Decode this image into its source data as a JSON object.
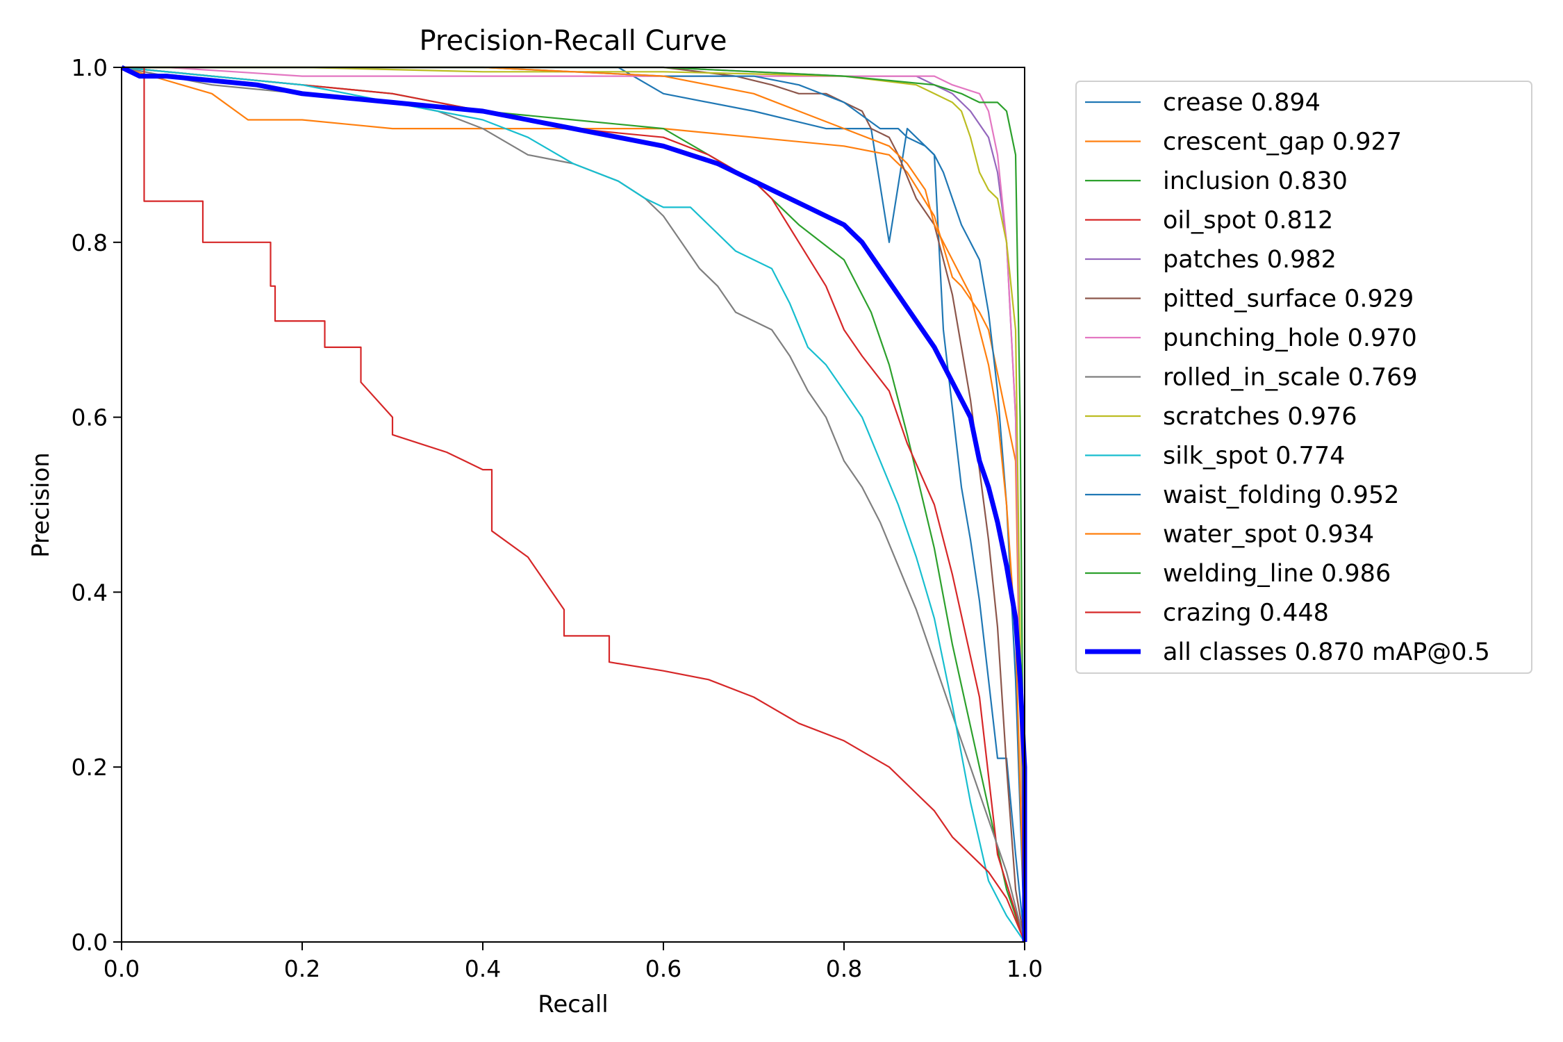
{
  "chart_data": {
    "type": "line",
    "title": "Precision-Recall Curve",
    "xlabel": "Recall",
    "ylabel": "Precision",
    "xlim": [
      0,
      1
    ],
    "ylim": [
      0,
      1
    ],
    "xticks": [
      "0.0",
      "0.2",
      "0.4",
      "0.6",
      "0.8",
      "1.0"
    ],
    "yticks": [
      "0.0",
      "0.2",
      "0.4",
      "0.6",
      "0.8",
      "1.0"
    ],
    "grid": false,
    "legend_position": "outside-right",
    "series": [
      {
        "name": "crease 0.894",
        "color": "#1f77b4",
        "width": 1,
        "x": [
          0,
          0.05,
          0.2,
          0.3,
          0.4,
          0.5,
          0.55,
          0.6,
          0.7,
          0.78,
          0.82,
          0.83,
          0.85,
          0.87,
          0.9,
          0.91,
          0.93,
          0.94,
          0.95,
          0.97,
          0.98,
          0.99,
          1.0
        ],
        "y": [
          1.0,
          1.0,
          1.0,
          1.0,
          1.0,
          1.0,
          1.0,
          0.97,
          0.95,
          0.93,
          0.93,
          0.93,
          0.8,
          0.93,
          0.9,
          0.7,
          0.52,
          0.46,
          0.39,
          0.21,
          0.21,
          0.1,
          0.0
        ]
      },
      {
        "name": "crescent_gap 0.927",
        "color": "#ff7f0e",
        "width": 1,
        "x": [
          0,
          0.1,
          0.14,
          0.2,
          0.3,
          0.45,
          0.6,
          0.7,
          0.8,
          0.85,
          0.87,
          0.9,
          0.92,
          0.93,
          0.95,
          0.96,
          0.98,
          0.99,
          1.0
        ],
        "y": [
          1.0,
          0.97,
          0.94,
          0.94,
          0.93,
          0.93,
          0.93,
          0.92,
          0.91,
          0.9,
          0.88,
          0.83,
          0.76,
          0.75,
          0.72,
          0.7,
          0.6,
          0.55,
          0.0
        ]
      },
      {
        "name": "inclusion 0.830",
        "color": "#2ca02c",
        "width": 1,
        "x": [
          0,
          0.1,
          0.2,
          0.3,
          0.4,
          0.5,
          0.6,
          0.65,
          0.7,
          0.72,
          0.75,
          0.8,
          0.83,
          0.85,
          0.87,
          0.9,
          0.92,
          0.95,
          0.98,
          1.0
        ],
        "y": [
          1.0,
          0.99,
          0.98,
          0.97,
          0.95,
          0.94,
          0.93,
          0.9,
          0.87,
          0.85,
          0.82,
          0.78,
          0.72,
          0.66,
          0.58,
          0.45,
          0.34,
          0.2,
          0.06,
          0.0
        ]
      },
      {
        "name": "oil_spot 0.812",
        "color": "#d62728",
        "width": 1,
        "x": [
          0,
          0.1,
          0.2,
          0.3,
          0.4,
          0.5,
          0.6,
          0.65,
          0.7,
          0.72,
          0.75,
          0.78,
          0.8,
          0.82,
          0.85,
          0.87,
          0.9,
          0.92,
          0.95,
          0.97,
          1.0
        ],
        "y": [
          1.0,
          0.99,
          0.98,
          0.97,
          0.95,
          0.93,
          0.92,
          0.9,
          0.87,
          0.85,
          0.8,
          0.75,
          0.7,
          0.67,
          0.63,
          0.57,
          0.5,
          0.42,
          0.28,
          0.1,
          0.0
        ]
      },
      {
        "name": "patches 0.982",
        "color": "#9467bd",
        "width": 1,
        "x": [
          0,
          0.3,
          0.6,
          0.8,
          0.88,
          0.92,
          0.94,
          0.96,
          0.97,
          0.98,
          0.99,
          1.0
        ],
        "y": [
          1.0,
          1.0,
          1.0,
          0.99,
          0.99,
          0.97,
          0.95,
          0.92,
          0.88,
          0.8,
          0.6,
          0.0
        ]
      },
      {
        "name": "pitted_surface 0.929",
        "color": "#8c564b",
        "width": 1,
        "x": [
          0,
          0.3,
          0.6,
          0.68,
          0.72,
          0.75,
          0.78,
          0.8,
          0.82,
          0.83,
          0.85,
          0.86,
          0.88,
          0.9,
          0.91,
          0.92,
          0.94,
          0.95,
          0.96,
          0.97,
          0.98,
          0.99,
          1.0
        ],
        "y": [
          1.0,
          1.0,
          1.0,
          0.99,
          0.98,
          0.97,
          0.97,
          0.96,
          0.95,
          0.93,
          0.92,
          0.9,
          0.85,
          0.82,
          0.78,
          0.74,
          0.62,
          0.54,
          0.46,
          0.36,
          0.2,
          0.06,
          0.0
        ]
      },
      {
        "name": "punching_hole 0.970",
        "color": "#e377c2",
        "width": 1,
        "x": [
          0,
          0.05,
          0.2,
          0.5,
          0.8,
          0.9,
          0.92,
          0.95,
          0.96,
          0.97,
          0.98,
          0.99,
          1.0
        ],
        "y": [
          1.0,
          1.0,
          0.99,
          0.99,
          0.99,
          0.99,
          0.98,
          0.97,
          0.95,
          0.9,
          0.8,
          0.6,
          0.0
        ]
      },
      {
        "name": "rolled_in_scale 0.769",
        "color": "#7f7f7f",
        "width": 1,
        "x": [
          0,
          0.1,
          0.2,
          0.3,
          0.35,
          0.4,
          0.45,
          0.5,
          0.55,
          0.58,
          0.6,
          0.62,
          0.64,
          0.66,
          0.68,
          0.7,
          0.72,
          0.74,
          0.76,
          0.78,
          0.8,
          0.82,
          0.84,
          0.86,
          0.88,
          0.9,
          0.92,
          0.94,
          0.96,
          0.98,
          1.0
        ],
        "y": [
          1.0,
          0.98,
          0.97,
          0.96,
          0.95,
          0.93,
          0.9,
          0.89,
          0.87,
          0.85,
          0.83,
          0.8,
          0.77,
          0.75,
          0.72,
          0.71,
          0.7,
          0.67,
          0.63,
          0.6,
          0.55,
          0.52,
          0.48,
          0.43,
          0.38,
          0.32,
          0.26,
          0.2,
          0.14,
          0.08,
          0.0
        ]
      },
      {
        "name": "scratches 0.976",
        "color": "#bcbd22",
        "width": 1,
        "x": [
          0,
          0.2,
          0.4,
          0.6,
          0.8,
          0.88,
          0.9,
          0.92,
          0.93,
          0.94,
          0.95,
          0.96,
          0.97,
          0.98,
          0.99,
          1.0
        ],
        "y": [
          1.0,
          1.0,
          0.995,
          0.995,
          0.99,
          0.98,
          0.97,
          0.96,
          0.95,
          0.92,
          0.88,
          0.86,
          0.85,
          0.8,
          0.7,
          0.0
        ]
      },
      {
        "name": "silk_spot 0.774",
        "color": "#17becf",
        "width": 1,
        "x": [
          0,
          0.1,
          0.2,
          0.3,
          0.4,
          0.45,
          0.5,
          0.55,
          0.58,
          0.6,
          0.63,
          0.66,
          0.68,
          0.7,
          0.72,
          0.74,
          0.76,
          0.78,
          0.8,
          0.82,
          0.84,
          0.86,
          0.88,
          0.9,
          0.92,
          0.94,
          0.96,
          0.98,
          1.0
        ],
        "y": [
          1.0,
          0.99,
          0.98,
          0.96,
          0.94,
          0.92,
          0.89,
          0.87,
          0.85,
          0.84,
          0.84,
          0.81,
          0.79,
          0.78,
          0.77,
          0.73,
          0.68,
          0.66,
          0.63,
          0.6,
          0.55,
          0.5,
          0.44,
          0.37,
          0.27,
          0.16,
          0.07,
          0.03,
          0.0
        ]
      },
      {
        "name": "waist_folding 0.952",
        "color": "#1f77b4",
        "width": 1,
        "x": [
          0,
          0.2,
          0.4,
          0.6,
          0.7,
          0.75,
          0.8,
          0.84,
          0.86,
          0.87,
          0.89,
          0.9,
          0.91,
          0.92,
          0.93,
          0.94,
          0.95,
          0.96,
          0.97,
          0.98,
          0.99,
          1.0
        ],
        "y": [
          1.0,
          1.0,
          1.0,
          0.99,
          0.99,
          0.98,
          0.96,
          0.93,
          0.93,
          0.92,
          0.91,
          0.9,
          0.88,
          0.85,
          0.82,
          0.8,
          0.78,
          0.72,
          0.63,
          0.5,
          0.3,
          0.0
        ]
      },
      {
        "name": "water_spot 0.934",
        "color": "#ff7f0e",
        "width": 1,
        "x": [
          0,
          0.2,
          0.4,
          0.6,
          0.7,
          0.75,
          0.8,
          0.85,
          0.87,
          0.89,
          0.9,
          0.92,
          0.94,
          0.96,
          0.97,
          0.98,
          0.99,
          1.0
        ],
        "y": [
          1.0,
          1.0,
          1.0,
          0.99,
          0.97,
          0.95,
          0.93,
          0.91,
          0.89,
          0.86,
          0.82,
          0.78,
          0.74,
          0.66,
          0.6,
          0.5,
          0.35,
          0.0
        ]
      },
      {
        "name": "welding_line 0.986",
        "color": "#2ca02c",
        "width": 1,
        "x": [
          0,
          0.1,
          0.3,
          0.5,
          0.6,
          0.7,
          0.8,
          0.85,
          0.9,
          0.93,
          0.95,
          0.97,
          0.98,
          0.99,
          0.995,
          1.0
        ],
        "y": [
          1.0,
          1.0,
          1.0,
          1.0,
          1.0,
          0.995,
          0.99,
          0.985,
          0.98,
          0.97,
          0.96,
          0.96,
          0.95,
          0.9,
          0.6,
          0.0
        ]
      },
      {
        "name": "crazing 0.448",
        "color": "#d62728",
        "width": 1,
        "x": [
          0,
          0.025,
          0.025,
          0.09,
          0.09,
          0.165,
          0.165,
          0.17,
          0.17,
          0.225,
          0.225,
          0.265,
          0.265,
          0.3,
          0.3,
          0.33,
          0.36,
          0.38,
          0.4,
          0.41,
          0.41,
          0.45,
          0.47,
          0.49,
          0.49,
          0.54,
          0.54,
          0.6,
          0.65,
          0.7,
          0.75,
          0.8,
          0.85,
          0.88,
          0.9,
          0.92,
          0.94,
          0.96,
          0.98,
          1.0
        ],
        "y": [
          1.0,
          1.0,
          0.847,
          0.847,
          0.8,
          0.8,
          0.75,
          0.75,
          0.71,
          0.71,
          0.68,
          0.68,
          0.64,
          0.6,
          0.58,
          0.57,
          0.56,
          0.55,
          0.54,
          0.54,
          0.47,
          0.44,
          0.41,
          0.38,
          0.35,
          0.35,
          0.32,
          0.31,
          0.3,
          0.28,
          0.25,
          0.23,
          0.2,
          0.17,
          0.15,
          0.12,
          0.1,
          0.08,
          0.05,
          0.0
        ]
      },
      {
        "name": "all classes 0.870 mAP@0.5",
        "color": "#0000ff",
        "width": 3,
        "x": [
          0,
          0.02,
          0.05,
          0.1,
          0.15,
          0.2,
          0.25,
          0.3,
          0.35,
          0.4,
          0.45,
          0.5,
          0.55,
          0.6,
          0.63,
          0.66,
          0.68,
          0.7,
          0.72,
          0.74,
          0.76,
          0.78,
          0.8,
          0.82,
          0.84,
          0.86,
          0.88,
          0.9,
          0.92,
          0.93,
          0.94,
          0.95,
          0.96,
          0.97,
          0.98,
          0.99,
          0.995,
          1.0,
          1.0
        ],
        "y": [
          1.0,
          0.99,
          0.99,
          0.985,
          0.98,
          0.97,
          0.965,
          0.96,
          0.955,
          0.95,
          0.94,
          0.93,
          0.92,
          0.91,
          0.9,
          0.89,
          0.88,
          0.87,
          0.86,
          0.85,
          0.84,
          0.83,
          0.82,
          0.8,
          0.77,
          0.74,
          0.71,
          0.68,
          0.64,
          0.62,
          0.6,
          0.55,
          0.52,
          0.48,
          0.43,
          0.37,
          0.3,
          0.2,
          0.0
        ]
      }
    ]
  }
}
